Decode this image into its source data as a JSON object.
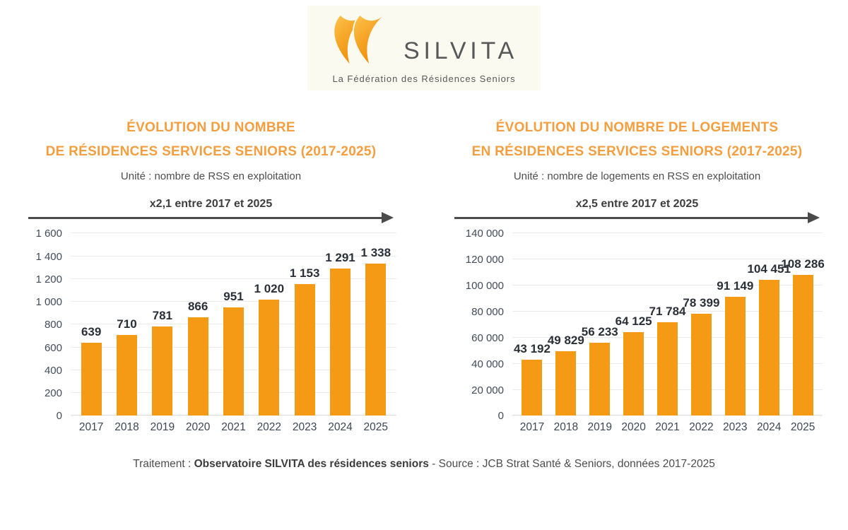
{
  "logo": {
    "brand": "SILVITA",
    "tagline": "La Fédération des Résidences Seniors",
    "colors": {
      "orange_light": "#fcc44c",
      "orange_dark": "#ee8e09",
      "text_gray": "#57585a",
      "panel_bg": "#fbfaf1"
    }
  },
  "chart_data": [
    {
      "type": "bar",
      "title": "ÉVOLUTION DU NOMBRE DE RÉSIDENCES SERVICES SENIORS (2017-2025)",
      "title_lines": [
        "ÉVOLUTION DU NOMBRE",
        "DE RÉSIDENCES SERVICES SENIORS (2017-2025)"
      ],
      "subtitle": "Unité : nombre de RSS en exploitation",
      "annotation": "x2,1 entre 2017 et 2025",
      "categories": [
        "2017",
        "2018",
        "2019",
        "2020",
        "2021",
        "2022",
        "2023",
        "2024",
        "2025"
      ],
      "values": [
        639,
        710,
        781,
        866,
        951,
        1020,
        1153,
        1291,
        1338
      ],
      "value_labels": [
        "639",
        "710",
        "781",
        "866",
        "951",
        "1 020",
        "1 153",
        "1 291",
        "1 338"
      ],
      "xlabel": "",
      "ylabel": "",
      "ylim": [
        0,
        1600
      ],
      "yticks": [
        0,
        200,
        400,
        600,
        800,
        1000,
        1200,
        1400,
        1600
      ],
      "ytick_labels": [
        "0",
        "200",
        "400",
        "600",
        "800",
        "1 000",
        "1 200",
        "1 400",
        "1 600"
      ],
      "grid": true,
      "legend": false,
      "bar_color": "#f49a15"
    },
    {
      "type": "bar",
      "title": "ÉVOLUTION DU NOMBRE DE LOGEMENTS EN RÉSIDENCES SERVICES SENIORS (2017-2025)",
      "title_lines": [
        "ÉVOLUTION DU NOMBRE DE LOGEMENTS",
        "EN RÉSIDENCES SERVICES SENIORS (2017-2025)"
      ],
      "subtitle": "Unité : nombre de logements en RSS en exploitation",
      "annotation": "x2,5 entre 2017 et 2025",
      "categories": [
        "2017",
        "2018",
        "2019",
        "2020",
        "2021",
        "2022",
        "2023",
        "2024",
        "2025"
      ],
      "values": [
        43192,
        49829,
        56233,
        64125,
        71784,
        78399,
        91149,
        104451,
        108286
      ],
      "value_labels": [
        "43 192",
        "49 829",
        "56 233",
        "64 125",
        "71 784",
        "78 399",
        "91 149",
        "104 451",
        "108 286"
      ],
      "xlabel": "",
      "ylabel": "",
      "ylim": [
        0,
        140000
      ],
      "yticks": [
        0,
        20000,
        40000,
        60000,
        80000,
        100000,
        120000,
        140000
      ],
      "ytick_labels": [
        "0",
        "20 000",
        "40 000",
        "60 000",
        "80 000",
        "100 000",
        "120 000",
        "140 000"
      ],
      "grid": true,
      "legend": false,
      "bar_color": "#f49a15"
    }
  ],
  "footer": {
    "prefix": "Traitement : ",
    "bold": "Observatoire SILVITA des résidences seniors",
    "suffix": " - Source : JCB Strat Santé & Seniors, données 2017-2025"
  }
}
